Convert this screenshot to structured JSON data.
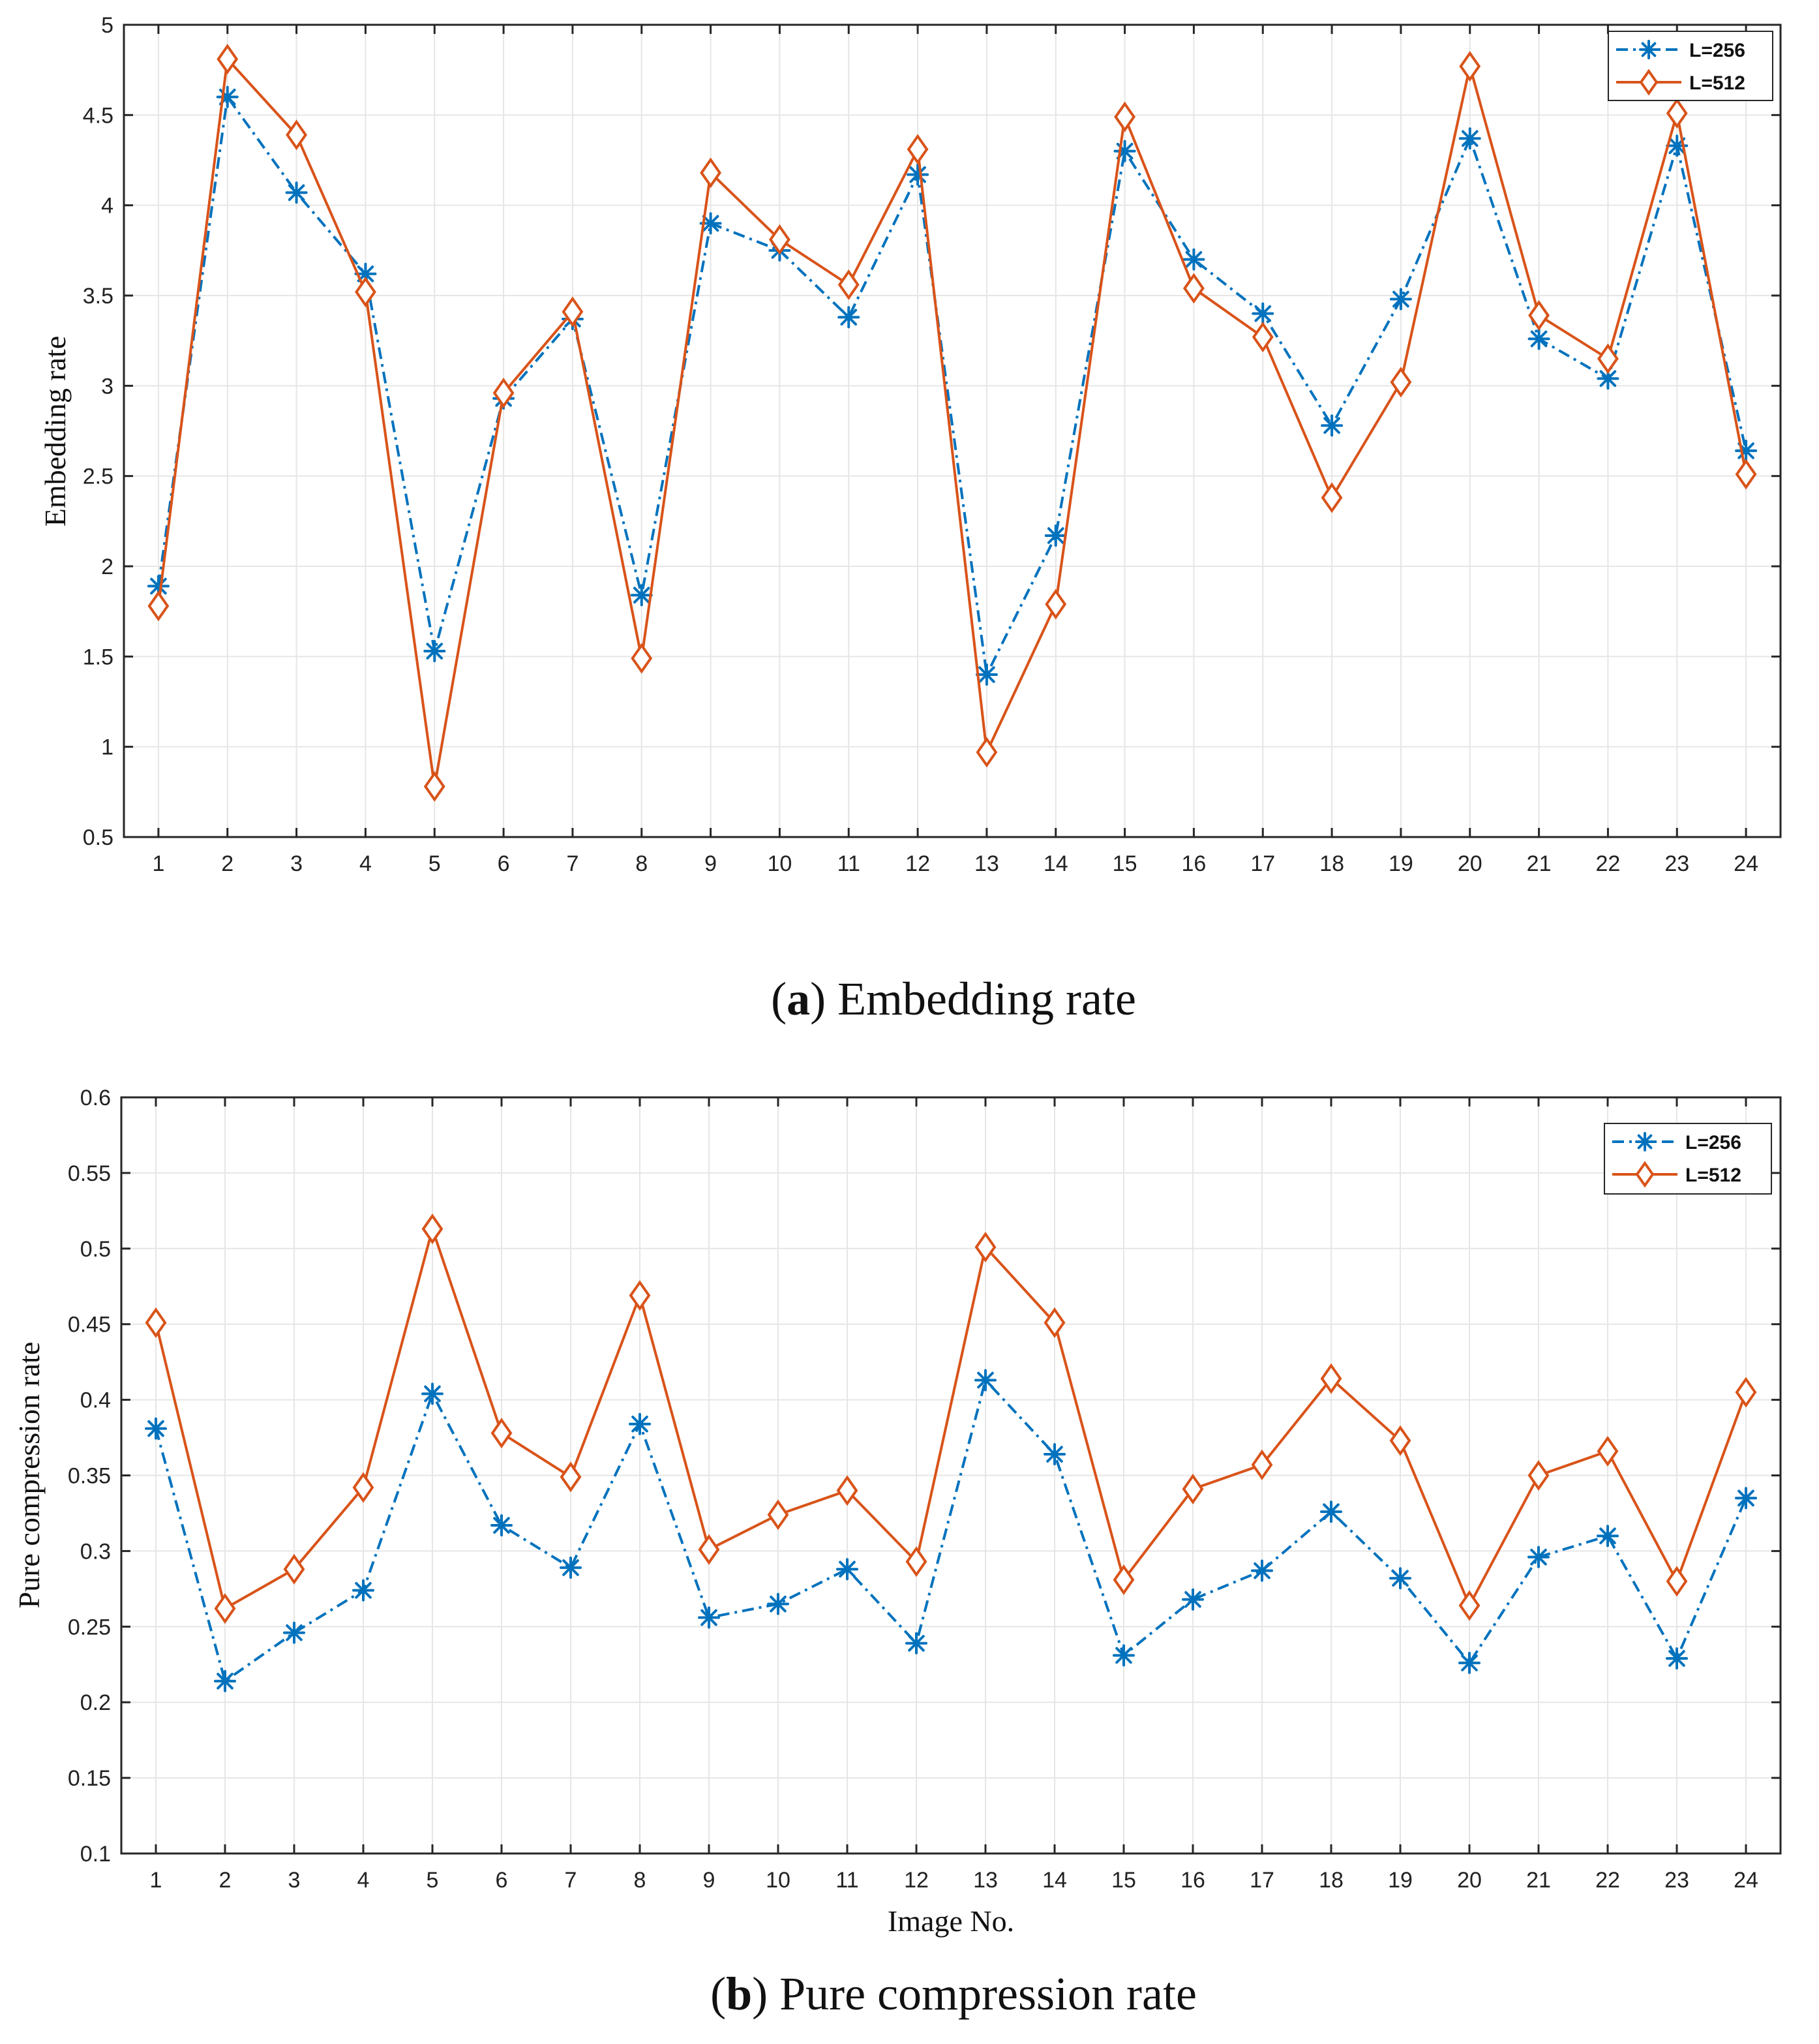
{
  "colors": {
    "series_256": "#0072BD",
    "series_512": "#D95319",
    "grid": "#E6E6E6",
    "axis": "#262626"
  },
  "chart_data": [
    {
      "panel": "a",
      "type": "line",
      "caption_letter": "a",
      "caption_open": "(",
      "caption_close": ")",
      "caption_text": " Embedding rate",
      "title": "",
      "xlabel": "",
      "ylabel": "Embedding rate",
      "ylim": [
        0.5,
        5
      ],
      "yticks": [
        0.5,
        1,
        1.5,
        2,
        2.5,
        3,
        3.5,
        4,
        4.5,
        5
      ],
      "ytick_labels": [
        "0.5",
        "1",
        "1.5",
        "2",
        "2.5",
        "3",
        "3.5",
        "4",
        "4.5",
        "5"
      ],
      "x": [
        1,
        2,
        3,
        4,
        5,
        6,
        7,
        8,
        9,
        10,
        11,
        12,
        13,
        14,
        15,
        16,
        17,
        18,
        19,
        20,
        21,
        22,
        23,
        24
      ],
      "xtick_labels": [
        "1",
        "2",
        "3",
        "4",
        "5",
        "6",
        "7",
        "8",
        "9",
        "10",
        "11",
        "12",
        "13",
        "14",
        "15",
        "16",
        "17",
        "18",
        "19",
        "20",
        "21",
        "22",
        "23",
        "24"
      ],
      "grid": true,
      "legend_position": "top-right",
      "series": [
        {
          "name": "L=256",
          "marker": "asterisk",
          "linestyle": "dash-dot",
          "values": [
            1.89,
            4.6,
            4.07,
            3.62,
            1.53,
            2.93,
            3.37,
            1.84,
            3.9,
            3.75,
            3.38,
            4.17,
            1.4,
            2.17,
            4.3,
            3.7,
            3.4,
            2.78,
            3.48,
            4.37,
            3.26,
            3.04,
            4.33,
            2.64
          ]
        },
        {
          "name": "L=512",
          "marker": "diamond",
          "linestyle": "solid",
          "values": [
            1.78,
            4.81,
            4.39,
            3.52,
            0.78,
            2.96,
            3.41,
            1.49,
            4.18,
            3.81,
            3.56,
            4.31,
            0.97,
            1.79,
            4.49,
            3.54,
            3.27,
            2.38,
            3.02,
            4.77,
            3.39,
            3.15,
            4.51,
            2.51
          ]
        }
      ]
    },
    {
      "panel": "b",
      "type": "line",
      "caption_letter": "b",
      "caption_open": "(",
      "caption_close": ")",
      "caption_text": " Pure compression rate",
      "title": "",
      "xlabel": "Image No.",
      "ylabel": "Pure compression rate",
      "ylim": [
        0.1,
        0.6
      ],
      "yticks": [
        0.1,
        0.15,
        0.2,
        0.25,
        0.3,
        0.35,
        0.4,
        0.45,
        0.5,
        0.55,
        0.6
      ],
      "ytick_labels": [
        "0.1",
        "0.15",
        "0.2",
        "0.25",
        "0.3",
        "0.35",
        "0.4",
        "0.45",
        "0.5",
        "0.55",
        "0.6"
      ],
      "x": [
        1,
        2,
        3,
        4,
        5,
        6,
        7,
        8,
        9,
        10,
        11,
        12,
        13,
        14,
        15,
        16,
        17,
        18,
        19,
        20,
        21,
        22,
        23,
        24
      ],
      "xtick_labels": [
        "1",
        "2",
        "3",
        "4",
        "5",
        "6",
        "7",
        "8",
        "9",
        "10",
        "11",
        "12",
        "13",
        "14",
        "15",
        "16",
        "17",
        "18",
        "19",
        "20",
        "21",
        "22",
        "23",
        "24"
      ],
      "grid": true,
      "legend_position": "top-right",
      "series": [
        {
          "name": "L=256",
          "marker": "asterisk",
          "linestyle": "dash-dot",
          "values": [
            0.381,
            0.214,
            0.246,
            0.274,
            0.404,
            0.317,
            0.289,
            0.384,
            0.256,
            0.265,
            0.288,
            0.239,
            0.413,
            0.364,
            0.231,
            0.268,
            0.287,
            0.326,
            0.282,
            0.226,
            0.296,
            0.31,
            0.229,
            0.335
          ]
        },
        {
          "name": "L=512",
          "marker": "diamond",
          "linestyle": "solid",
          "values": [
            0.451,
            0.262,
            0.288,
            0.342,
            0.513,
            0.378,
            0.349,
            0.469,
            0.301,
            0.324,
            0.34,
            0.293,
            0.501,
            0.451,
            0.281,
            0.341,
            0.357,
            0.414,
            0.373,
            0.264,
            0.35,
            0.366,
            0.28,
            0.405
          ]
        }
      ]
    }
  ]
}
